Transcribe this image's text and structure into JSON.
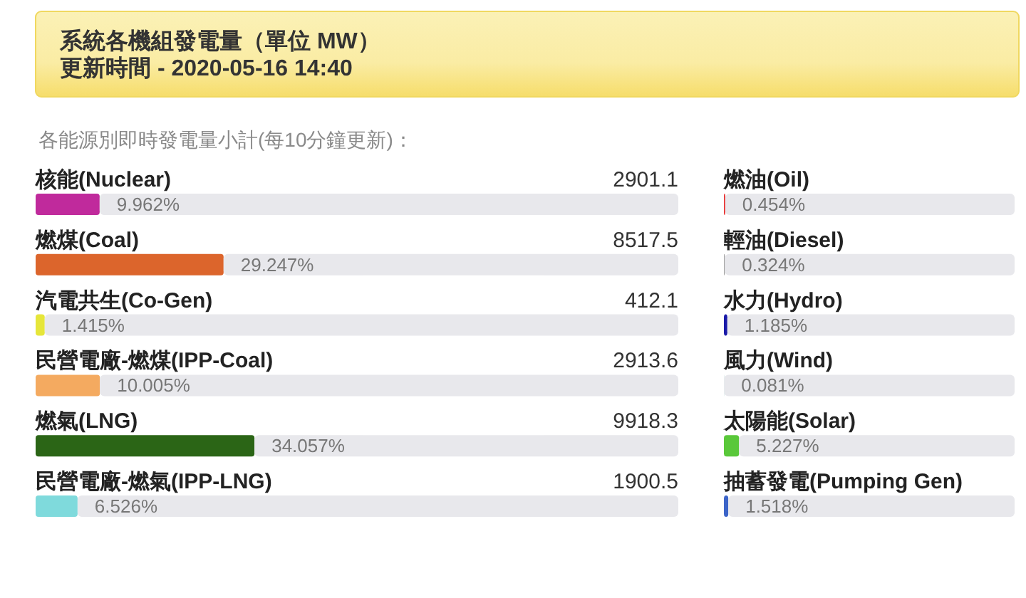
{
  "chart_data": [
    {
      "type": "bar",
      "orientation": "horizontal",
      "stacked": true,
      "title": "系統各機組發電量（單位 MW）",
      "subtitle": "更新時間 - 2020-05-16 14:40",
      "categories": [
        "核能(Nuclear)",
        "燃煤(Coal)",
        "汽電共生(Co-Gen)",
        "民營電廠-燃煤(IPP-Coal)",
        "燃氣(LNG)",
        "民營電廠-燃氣(IPP-LNG)"
      ],
      "series": [
        {
          "values": [
            9.962,
            29.247,
            1.415,
            10.005,
            34.057,
            6.526
          ],
          "value_labels": [
            "9.962%",
            "29.247%",
            "1.415%",
            "10.005%",
            "34.057%",
            "6.526%"
          ],
          "colors": [
            "#c02a9c",
            "#dc652c",
            "#e6e63a",
            "#f4aa60",
            "#2b6516",
            "#7fdadc"
          ]
        },
        {
          "values": [
            90.038,
            70.753,
            98.585,
            89.995,
            65.943,
            93.474
          ],
          "color": "#e8e8ec"
        }
      ],
      "xlim": [
        0,
        100
      ],
      "tick_labels": "y",
      "annotations": [
        "各能源別即時發電量小計(每10分鐘更新)：",
        "2901.1",
        "8517.5",
        "412.1",
        "2913.6",
        "9918.3",
        "1900.5"
      ]
    },
    {
      "type": "bar",
      "orientation": "horizontal",
      "stacked": true,
      "categories": [
        "燃油(Oil)",
        "輕油(Diesel)",
        "水力(Hydro)",
        "風力(Wind)",
        "太陽能(Solar)",
        "抽蓄發電(Pumping Gen)"
      ],
      "series": [
        {
          "values": [
            0.454,
            0.324,
            1.185,
            0.081,
            5.227,
            1.518
          ],
          "value_labels": [
            "0.454%",
            "0.324%",
            "1.185%",
            "0.081%",
            "5.227%",
            "1.518%"
          ],
          "colors": [
            "#e83232",
            "#a0a0a0",
            "#1a1aa8",
            "#b8d4d4",
            "#5ac83a",
            "#3c64c8"
          ]
        },
        {
          "values": [
            99.546,
            99.676,
            98.815,
            99.919,
            94.773,
            98.482
          ],
          "color": "#e8e8ec"
        }
      ],
      "xlim": [
        0,
        100
      ],
      "tick_labels": "y"
    }
  ]
}
